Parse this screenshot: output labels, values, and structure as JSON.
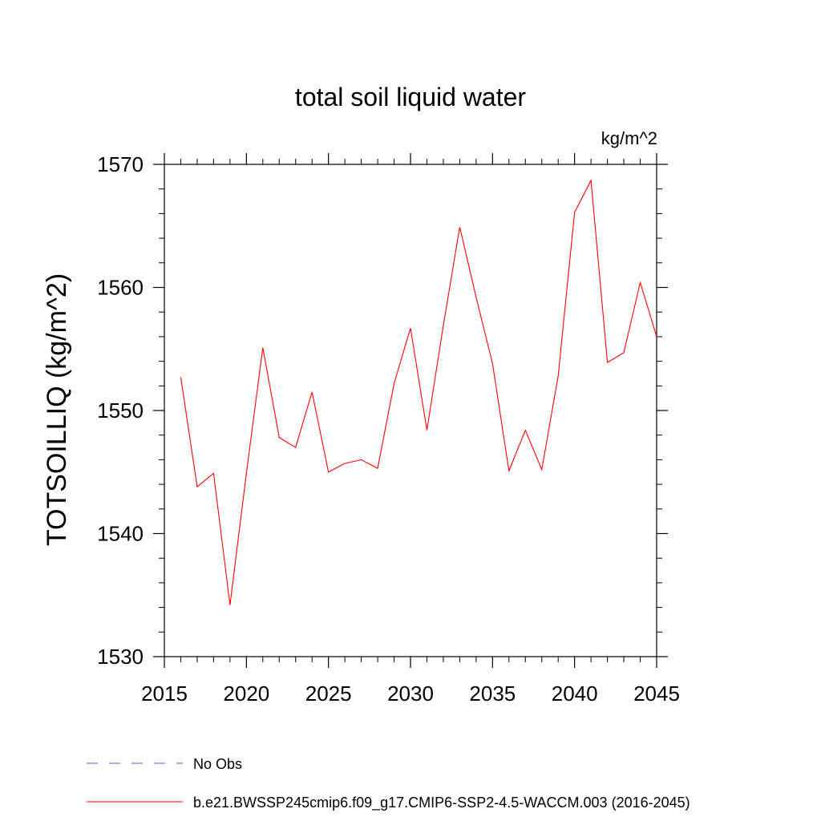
{
  "chart_data": {
    "type": "line",
    "title": "total soil liquid water",
    "units": "kg/m^2",
    "ylabel": "TOTSOILLIQ  (kg/m^2)",
    "xlabel": "",
    "xlim": [
      2015,
      2045
    ],
    "ylim": [
      1530,
      1570
    ],
    "x_ticks": [
      2015,
      2020,
      2025,
      2030,
      2035,
      2040,
      2045
    ],
    "y_ticks": [
      1530,
      1540,
      1550,
      1560,
      1570
    ],
    "x_ticks_labels": [
      "2015",
      "2020",
      "2025",
      "2030",
      "2035",
      "2040",
      "2045"
    ],
    "y_ticks_labels": [
      "1530",
      "1540",
      "1550",
      "1560",
      "1570"
    ],
    "grid": false,
    "legend_placement": "bottom",
    "series": [
      {
        "name": "b.e21.BWSSP245cmip6.f09_g17.CMIP6-SSP2-4.5-WACCM.003 (2016-2045)",
        "color": "#ff0000",
        "style": "solid",
        "x": [
          2016,
          2017,
          2018,
          2019,
          2020,
          2021,
          2022,
          2023,
          2024,
          2025,
          2026,
          2027,
          2028,
          2029,
          2030,
          2031,
          2032,
          2033,
          2034,
          2035,
          2036,
          2037,
          2038,
          2039,
          2040,
          2041,
          2042,
          2043,
          2044,
          2045
        ],
        "y": [
          1552.7,
          1543.8,
          1544.9,
          1534.2,
          1544.9,
          1555.1,
          1547.8,
          1547.0,
          1551.5,
          1545.0,
          1545.7,
          1546.0,
          1545.3,
          1552.2,
          1556.7,
          1548.4,
          1556.9,
          1564.9,
          1559.2,
          1553.8,
          1545.1,
          1548.4,
          1545.2,
          1552.8,
          1566.1,
          1568.7,
          1553.9,
          1554.7,
          1560.4,
          1556.0
        ]
      }
    ],
    "legend": [
      {
        "label": "No Obs",
        "color": "#6a5acd",
        "style": "dashed"
      },
      {
        "label": "b.e21.BWSSP245cmip6.f09_g17.CMIP6-SSP2-4.5-WACCM.003 (2016-2045)",
        "color": "#ff0000",
        "style": "solid"
      }
    ]
  }
}
